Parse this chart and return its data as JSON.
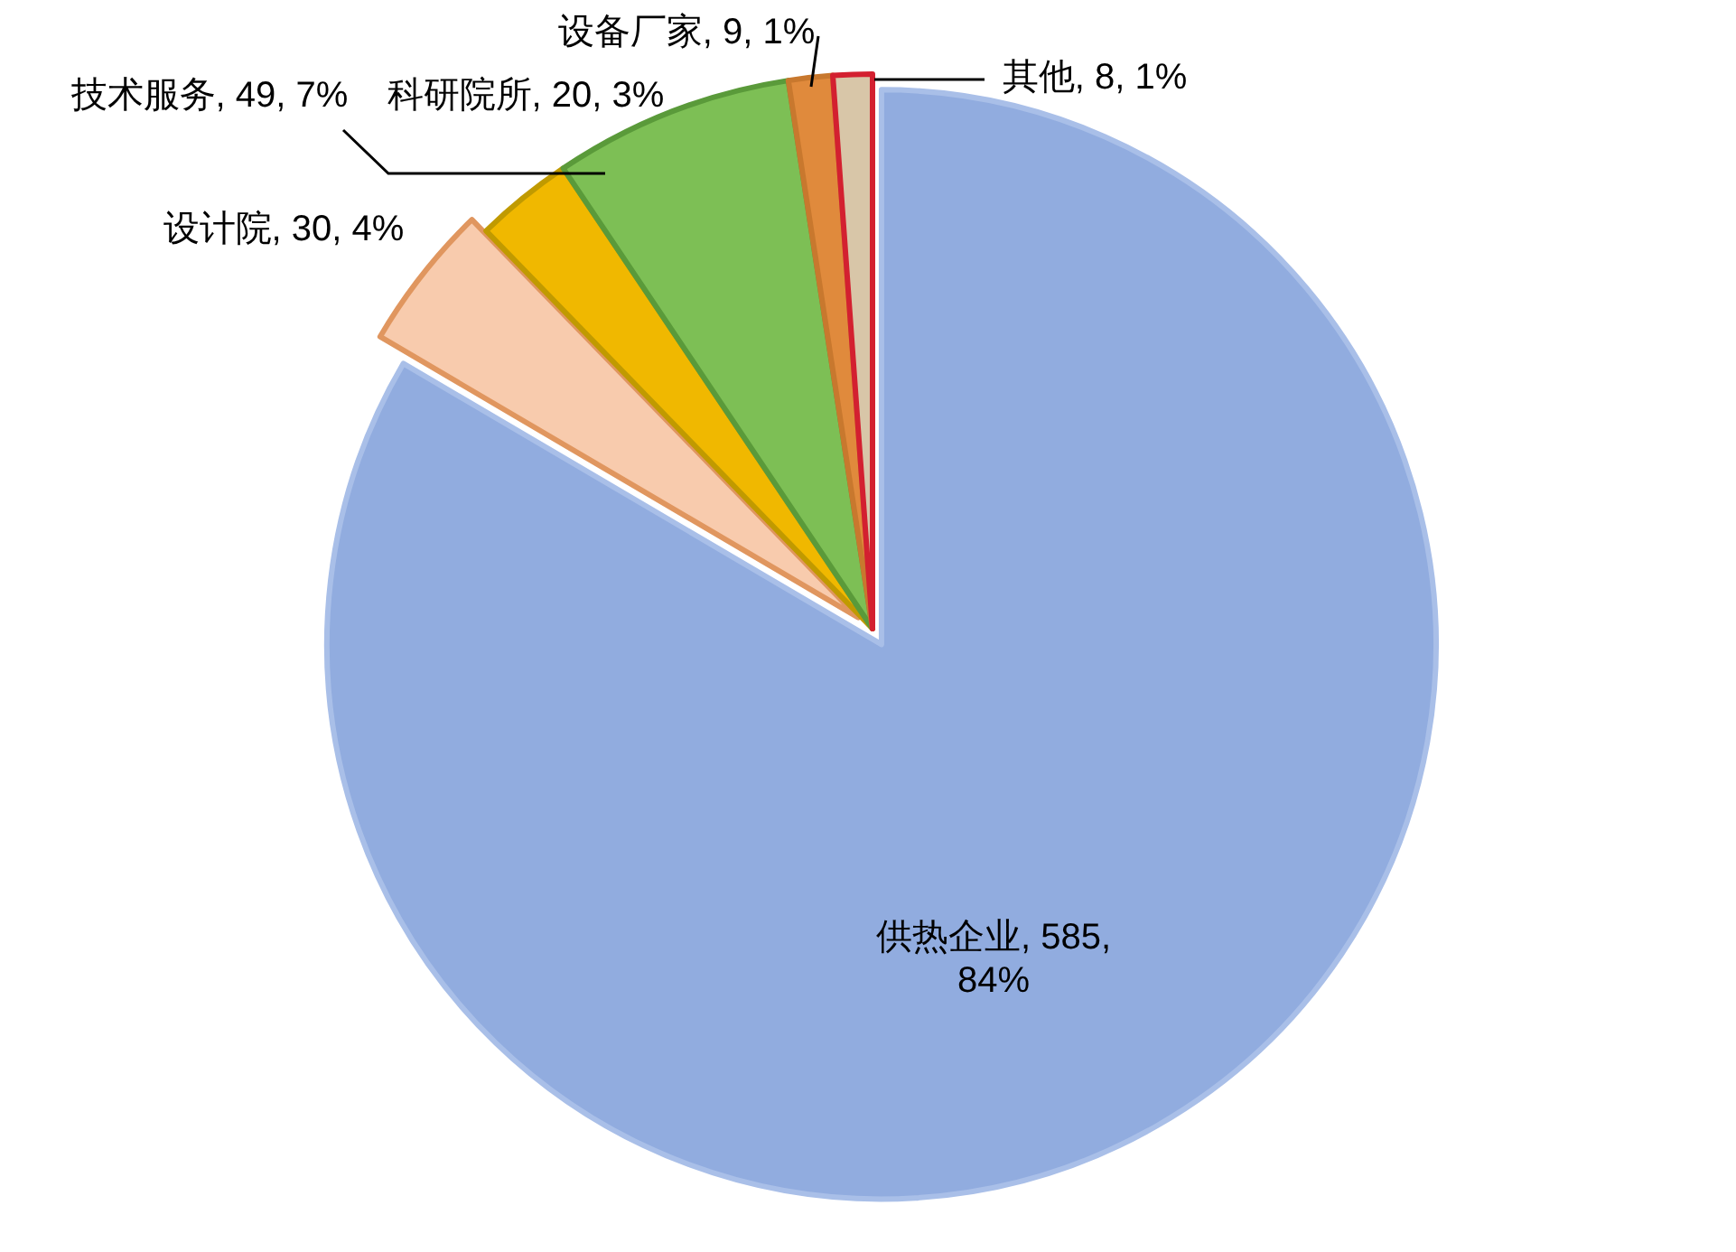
{
  "chart_data": {
    "type": "pie",
    "categories": [
      "供热企业",
      "设计院",
      "科研院所",
      "技术服务",
      "设备厂家",
      "其他"
    ],
    "values": [
      585,
      30,
      20,
      49,
      9,
      8
    ],
    "value_labels": [
      "585, 84%",
      "30, 4%",
      "20, 3%",
      "49, 7%",
      "9, 1%",
      "8, 1%"
    ],
    "colors": [
      "#91acdf",
      "#f8cbad",
      "#f0b800",
      "#7dbf55",
      "#e08a3c",
      "#d8c6a8"
    ],
    "legend": false
  }
}
